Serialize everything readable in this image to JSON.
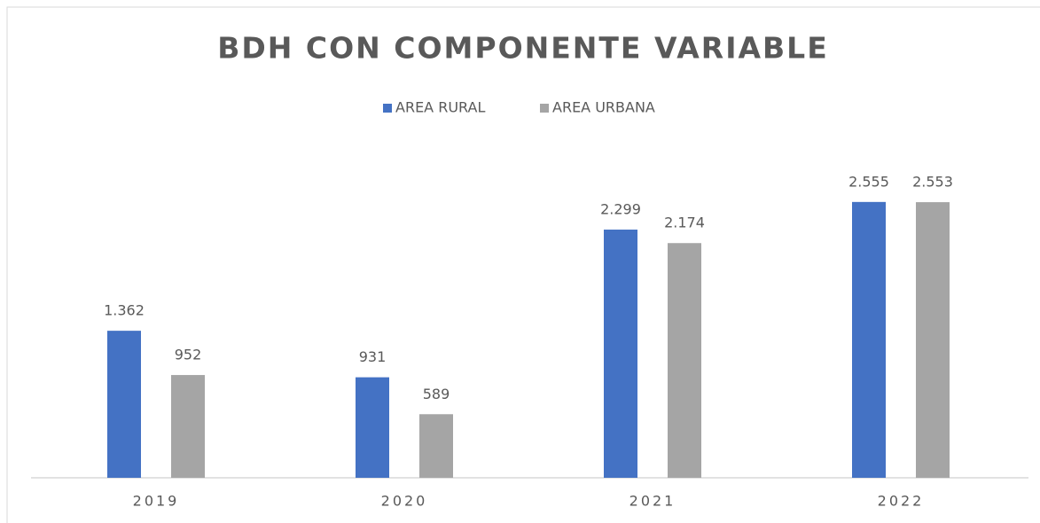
{
  "chart_data": {
    "type": "bar",
    "title": "BDH CON COMPONENTE VARIABLE",
    "categories": [
      "2019",
      "2020",
      "2021",
      "2022"
    ],
    "series": [
      {
        "name": "AREA RURAL",
        "color": "#4472c4",
        "values": [
          1362,
          931,
          2299,
          2555
        ],
        "value_labels": [
          "1.362",
          "931",
          "2.299",
          "2.555"
        ]
      },
      {
        "name": "AREA URBANA",
        "color": "#a5a5a5",
        "values": [
          952,
          589,
          2174,
          2553
        ],
        "value_labels": [
          "952",
          "589",
          "2.174",
          "2.553"
        ]
      }
    ],
    "ylim": [
      0,
      2800
    ],
    "legend": "top"
  }
}
